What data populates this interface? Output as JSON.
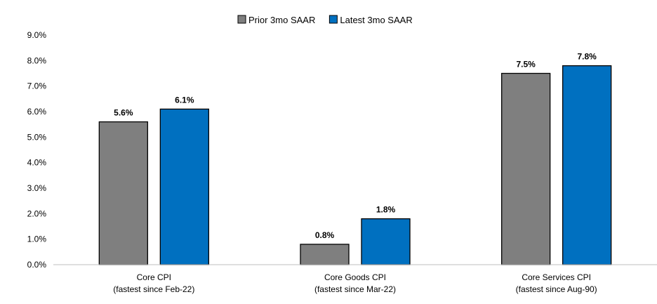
{
  "chart_data": {
    "type": "bar",
    "title": "",
    "xlabel": "",
    "ylabel": "",
    "ylim": [
      0,
      9
    ],
    "yticks": [
      "0.0%",
      "1.0%",
      "2.0%",
      "3.0%",
      "4.0%",
      "5.0%",
      "6.0%",
      "7.0%",
      "8.0%",
      "9.0%"
    ],
    "grid": false,
    "legend_position": "top",
    "categories": [
      [
        "Core CPI",
        "(fastest since Feb-22)"
      ],
      [
        "Core Goods CPI",
        "(fastest since Mar-22)"
      ],
      [
        "Core Services CPI",
        "(fastest since Aug-90)"
      ]
    ],
    "series": [
      {
        "name": "Prior 3mo SAAR",
        "color": "#7f7f7f",
        "values": [
          5.6,
          0.8,
          7.5
        ],
        "labels": [
          "5.6%",
          "0.8%",
          "7.5%"
        ]
      },
      {
        "name": "Latest 3mo SAAR",
        "color": "#0070c0",
        "values": [
          6.1,
          1.8,
          7.8
        ],
        "labels": [
          "6.1%",
          "1.8%",
          "7.8%"
        ]
      }
    ]
  }
}
